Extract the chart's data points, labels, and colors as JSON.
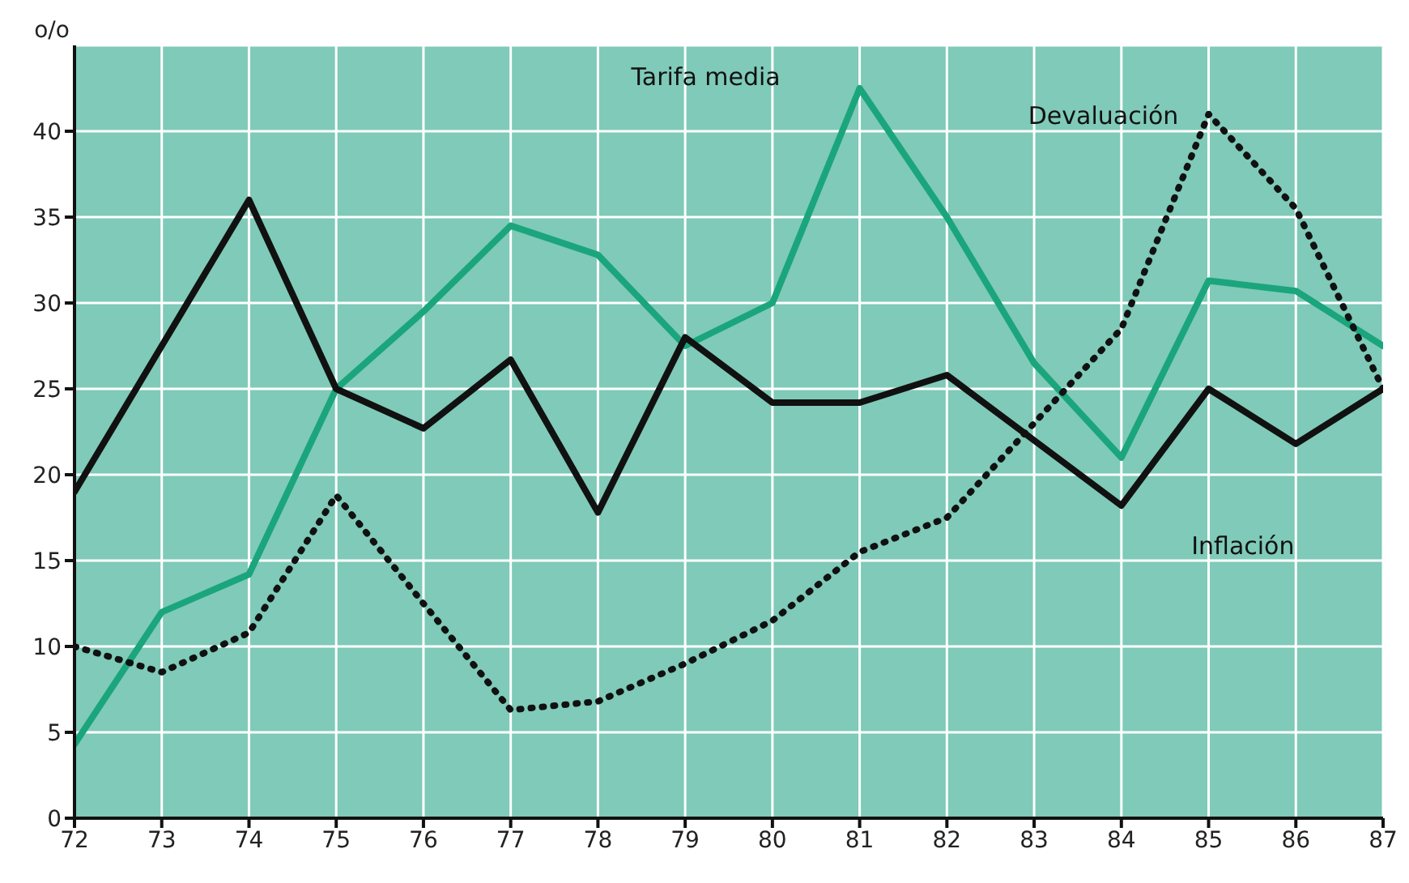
{
  "chart_data": {
    "type": "line",
    "ylabel": "o/o",
    "x": [
      72,
      73,
      74,
      75,
      76,
      77,
      78,
      79,
      80,
      81,
      82,
      83,
      84,
      85,
      86,
      87
    ],
    "xlim": [
      72,
      87
    ],
    "xticks": [
      72,
      73,
      74,
      75,
      76,
      77,
      78,
      79,
      80,
      81,
      82,
      83,
      84,
      85,
      86,
      87
    ],
    "ylim": [
      0,
      45
    ],
    "yticks": [
      0,
      5,
      10,
      15,
      20,
      25,
      30,
      35,
      40
    ],
    "grid": true,
    "legend": false,
    "marker": "none",
    "series": [
      {
        "name": "Tarifa media",
        "color": "#1ba57c",
        "line_style": "solid",
        "values": [
          4.3,
          12,
          14.2,
          25,
          29.5,
          34.5,
          32.8,
          27.5,
          30,
          42.5,
          35,
          26.5,
          21,
          31.3,
          30.7,
          27.5
        ]
      },
      {
        "name": "Devaluación",
        "color": "#111111",
        "line_style": "dotted",
        "values": [
          10,
          8.5,
          10.8,
          18.8,
          12.5,
          6.3,
          6.8,
          9,
          11.5,
          15.5,
          17.5,
          23,
          28.5,
          41,
          35.5,
          25
        ]
      },
      {
        "name": "Inflación",
        "color": "#111111",
        "line_style": "solid",
        "values": [
          19,
          27.5,
          36,
          25,
          22.7,
          26.7,
          17.8,
          28,
          24.2,
          24.2,
          25.8,
          22,
          18.2,
          25,
          21.8,
          25
        ]
      }
    ]
  }
}
